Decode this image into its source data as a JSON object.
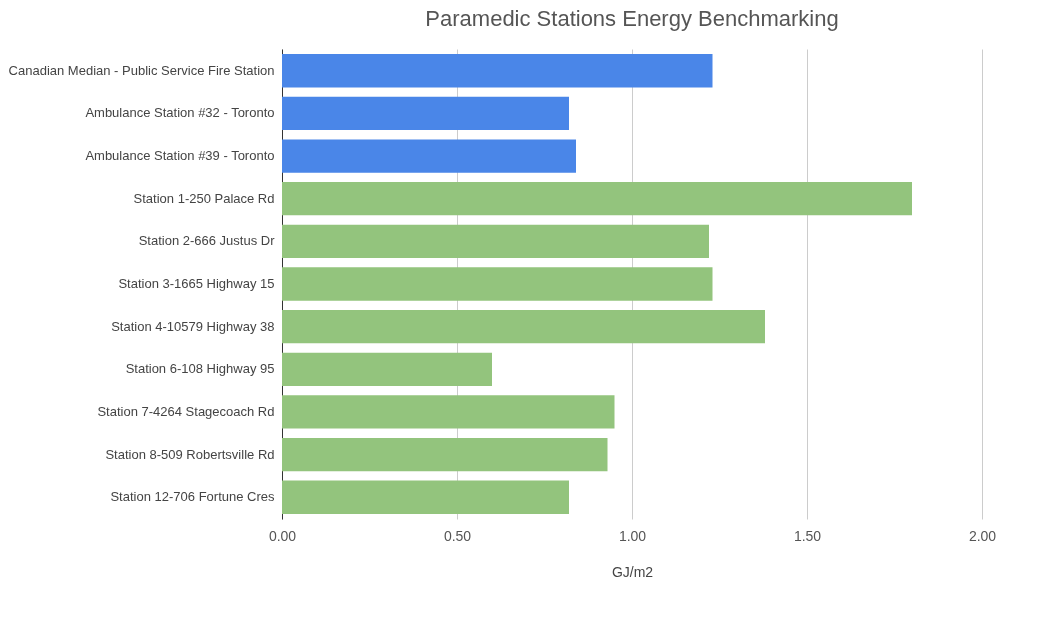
{
  "chart_data": {
    "type": "bar",
    "orientation": "horizontal",
    "title": "Paramedic Stations Energy Benchmarking",
    "xlabel": "GJ/m2",
    "categories": [
      "Canadian Median - Public Service Fire Station",
      "Ambulance Station #32 - Toronto",
      "Ambulance Station #39 - Toronto",
      "Station 1-250 Palace Rd",
      "Station 2-666 Justus Dr",
      "Station 3-1665 Highway 15",
      "Station 4-10579 Highway 38",
      "Station 6-108 Highway 95",
      "Station 7-4264 Stagecoach Rd",
      "Station 8-509 Robertsville Rd",
      "Station 12-706 Fortune Cres"
    ],
    "values": [
      1.23,
      0.82,
      0.84,
      1.8,
      1.22,
      1.23,
      1.38,
      0.6,
      0.95,
      0.93,
      0.82
    ],
    "colors": [
      "#4a86e8",
      "#4a86e8",
      "#4a86e8",
      "#93c47d",
      "#93c47d",
      "#93c47d",
      "#93c47d",
      "#93c47d",
      "#93c47d",
      "#93c47d",
      "#93c47d"
    ],
    "xlim": [
      0,
      2
    ],
    "xticks": [
      {
        "value": 0,
        "label": "0.00"
      },
      {
        "value": 0.5,
        "label": "0.50"
      },
      {
        "value": 1,
        "label": "1.00"
      },
      {
        "value": 1.5,
        "label": "1.50"
      },
      {
        "value": 2,
        "label": "2.00"
      }
    ],
    "grid": "x"
  }
}
